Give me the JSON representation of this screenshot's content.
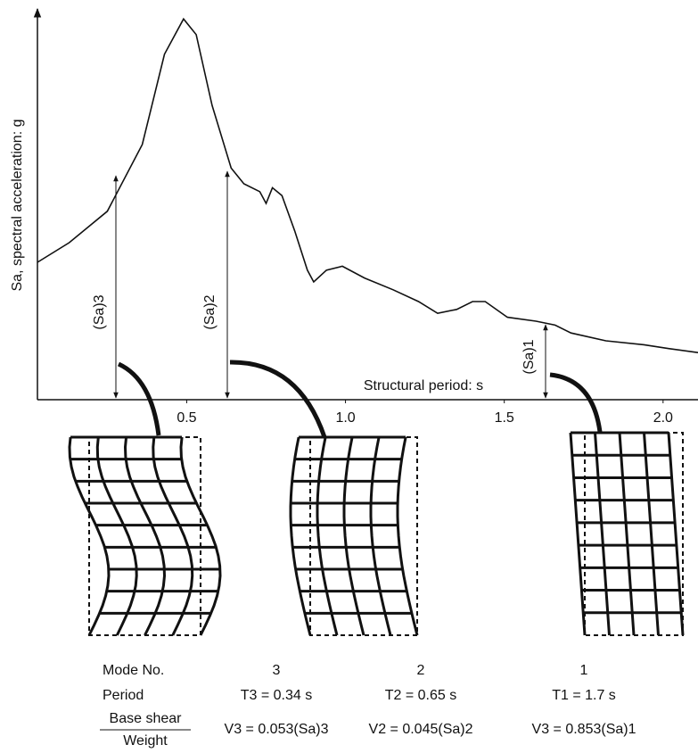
{
  "chart_data": {
    "type": "line",
    "y_label": "Sa, spectral acceleration: g",
    "x_label": "Structural period: s",
    "x": [
      0.03,
      0.13,
      0.25,
      0.36,
      0.43,
      0.49,
      0.53,
      0.58,
      0.64,
      0.68,
      0.73,
      0.75,
      0.77,
      0.8,
      0.84,
      0.88,
      0.9,
      0.94,
      0.99,
      1.06,
      1.15,
      1.23,
      1.29,
      1.35,
      1.4,
      1.44,
      1.51,
      1.6,
      1.66,
      1.71,
      1.82,
      1.94,
      2.02,
      2.11
    ],
    "values": [
      0.35,
      0.4,
      0.48,
      0.65,
      0.88,
      0.97,
      0.93,
      0.75,
      0.59,
      0.55,
      0.53,
      0.5,
      0.54,
      0.52,
      0.43,
      0.33,
      0.3,
      0.33,
      0.34,
      0.31,
      0.28,
      0.25,
      0.22,
      0.23,
      0.25,
      0.25,
      0.21,
      0.2,
      0.19,
      0.17,
      0.15,
      0.14,
      0.13,
      0.12
    ],
    "color": "#111111",
    "xlim": [
      0.03,
      2.11
    ],
    "ylim": [
      0,
      1
    ],
    "xticks": [
      0.5,
      {
        "value": 1,
        "label": "1.0"
      },
      1.5,
      {
        "value": 2,
        "label": "2.0"
      }
    ],
    "annotations": [
      "(Sa)3",
      "(Sa)2",
      "(Sa)1"
    ]
  },
  "table": {
    "rows": [
      [
        "Mode No.",
        "3",
        "2",
        "1"
      ],
      [
        "Period",
        "T3 = 0.34 s",
        "T2 = 0.65 s",
        "T1 = 1.7 s"
      ],
      [
        "Base shear",
        "V3 = 0.053(Sa)3",
        "V2 = 0.045(Sa)2",
        "V3 = 0.853(Sa)1"
      ]
    ],
    "denominator": "Weight"
  }
}
